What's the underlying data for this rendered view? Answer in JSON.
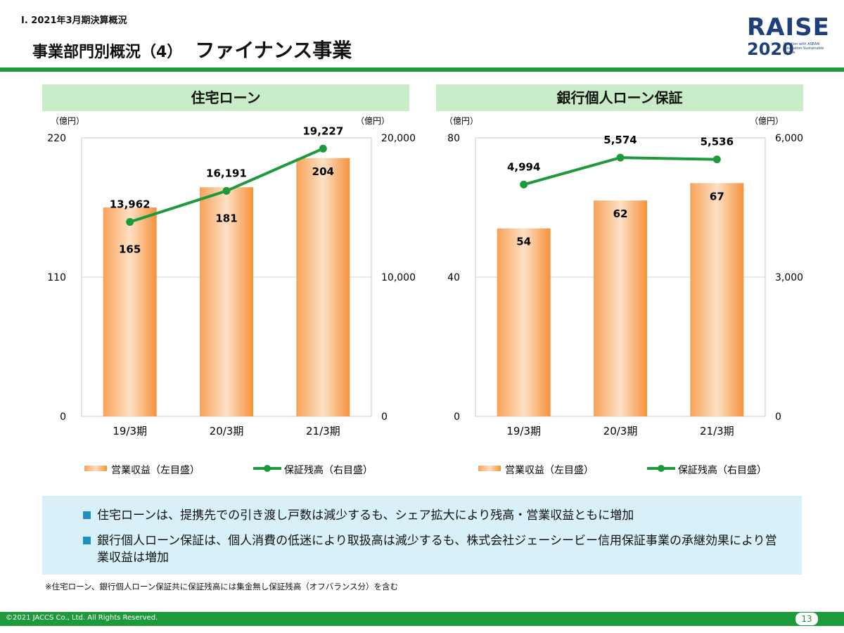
{
  "header": {
    "section": "Ⅰ. 2021年3月期決算概況",
    "title": "事業部門別概況（4）",
    "subtitle": "ファイナンス事業",
    "logo_word": "RAISE",
    "logo_year": "2020",
    "logo_tagline": "Relation with ASEAN Innovation Sustainable Evolve"
  },
  "colors": {
    "accent_green": "#1e9a3c",
    "header_bg": "#c8ecc8",
    "bar_color": "#f5923a",
    "line_color": "#1e9a3c",
    "note_bg": "#d8f0f8"
  },
  "chart_data": [
    {
      "type": "bar",
      "title": "住宅ローン",
      "categories": [
        "19/3期",
        "20/3期",
        "21/3期"
      ],
      "left_unit": "（億円）",
      "right_unit": "（億円）",
      "left_ticks": [
        "220",
        "110",
        "0"
      ],
      "right_ticks": [
        "20,000",
        "10,000",
        "0"
      ],
      "ylim_left": [
        0,
        220
      ],
      "ylim_right": [
        0,
        20000
      ],
      "series": [
        {
          "name": "営業収益（左目盛）",
          "kind": "bar",
          "axis": "left",
          "values": [
            165,
            181,
            204
          ],
          "labels": [
            "165",
            "181",
            "204"
          ]
        },
        {
          "name": "保証残高（右目盛）",
          "kind": "line",
          "axis": "right",
          "values": [
            13962,
            16191,
            19227
          ],
          "labels": [
            "13,962",
            "16,191",
            "19,227"
          ]
        }
      ]
    },
    {
      "type": "bar",
      "title": "銀行個人ローン保証",
      "categories": [
        "19/3期",
        "20/3期",
        "21/3期"
      ],
      "left_unit": "（億円）",
      "right_unit": "（億円）",
      "left_ticks": [
        "80",
        "40",
        "0"
      ],
      "right_ticks": [
        "6,000",
        "3,000",
        "0"
      ],
      "ylim_left": [
        0,
        80
      ],
      "ylim_right": [
        0,
        6000
      ],
      "series": [
        {
          "name": "営業収益（左目盛）",
          "kind": "bar",
          "axis": "left",
          "values": [
            54,
            62,
            67
          ],
          "labels": [
            "54",
            "62",
            "67"
          ]
        },
        {
          "name": "保証残高（右目盛）",
          "kind": "line",
          "axis": "right",
          "values": [
            4994,
            5574,
            5536
          ],
          "labels": [
            "4,994",
            "5,574",
            "5,536"
          ]
        }
      ]
    }
  ],
  "notes": [
    "住宅ローンは、提携先での引き渡し戸数は減少するも、シェア拡大により残高・営業収益ともに増加",
    "銀行個人ローン保証は、個人消費の低迷により取扱高は減少するも、株式会社ジェーシービー信用保証事業の承継効果により営業収益は増加"
  ],
  "footnote": "※住宅ローン、銀行個人ローン保証共に保証残高には集金無し保証残高（オフバランス分）を含む",
  "footer": {
    "copyright": "©2021 JACCS Co., Ltd. All Rights Reserved.",
    "page": "13"
  }
}
